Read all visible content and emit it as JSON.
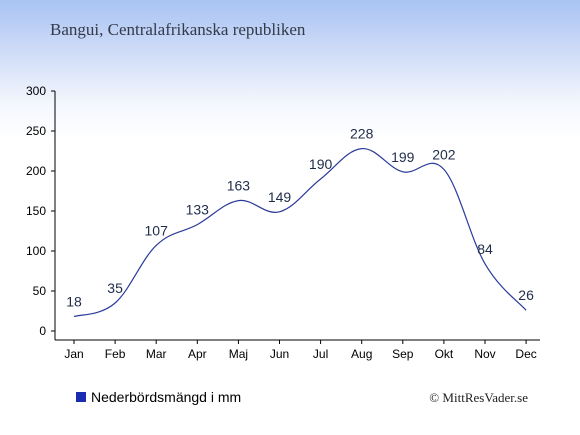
{
  "title": "Bangui, Centralafrikanska republiken",
  "legend": {
    "label": "Nederbördsmängd i mm",
    "color": "#1a2db0"
  },
  "copyright": "© MittResVader.se",
  "line_color": "#2a3a9a",
  "chart_data": {
    "type": "line",
    "categories": [
      "Jan",
      "Feb",
      "Mar",
      "Apr",
      "Maj",
      "Jun",
      "Jul",
      "Aug",
      "Sep",
      "Okt",
      "Nov",
      "Dec"
    ],
    "series": [
      {
        "name": "Nederbördsmängd i mm",
        "values": [
          18,
          35,
          107,
          133,
          163,
          149,
          190,
          228,
          199,
          202,
          84,
          26
        ]
      }
    ],
    "ylim": [
      0,
      300
    ],
    "yticks": [
      0,
      50,
      100,
      150,
      200,
      250,
      300
    ],
    "grid": false,
    "legend_position": "bottom-left"
  }
}
